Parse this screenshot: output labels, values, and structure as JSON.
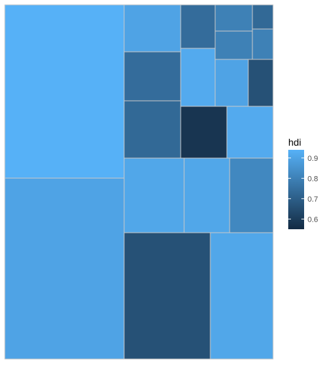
{
  "chart_data": {
    "type": "treemap",
    "color_variable": "hdi",
    "tiles": [
      {
        "hdi": 0.94
      },
      {
        "hdi": 0.9
      },
      {
        "hdi": 0.9
      },
      {
        "hdi": 0.74
      },
      {
        "hdi": 0.74
      },
      {
        "hdi": 0.92
      },
      {
        "hdi": 0.92
      },
      {
        "hdi": 0.9
      },
      {
        "hdi": 0.91
      },
      {
        "hdi": 0.8
      },
      {
        "hdi": 0.8
      },
      {
        "hdi": 0.73
      },
      {
        "hdi": 0.58
      },
      {
        "hdi": 0.91
      },
      {
        "hdi": 0.8
      },
      {
        "hdi": 0.73
      },
      {
        "hdi": 0.66
      },
      {
        "hdi": 0.82
      },
      {
        "hdi": 0.94
      },
      {
        "hdi": 0.91
      },
      {
        "hdi": 0.66
      }
    ],
    "legend": {
      "title": "hdi",
      "position": "right",
      "ticks": [
        "0.9",
        "0.8",
        "0.7",
        "0.6"
      ],
      "tick_values": [
        0.9,
        0.8,
        0.7,
        0.6
      ],
      "range": [
        0.55,
        0.94
      ],
      "low_color": "#132B43",
      "high_color": "#56B1F7"
    }
  }
}
